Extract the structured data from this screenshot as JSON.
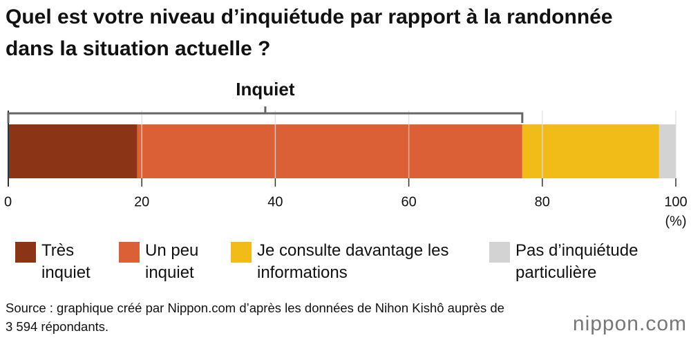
{
  "chart_data": {
    "type": "stacked-bar",
    "title": "Quel est votre niveau d’inquiétude par rapport à la randonnée dans la situation actuelle ?",
    "bracket_label": "Inquiet",
    "axis_unit": "(%)",
    "xlim": [
      0,
      100
    ],
    "xticks": [
      0,
      20,
      40,
      60,
      80,
      100
    ],
    "grid": true,
    "series": [
      {
        "name": "Très inquiet",
        "color": "#8c3516",
        "values": [
          19.3
        ]
      },
      {
        "name": "Un peu inquiet",
        "color": "#dc6035",
        "values": [
          57.7
        ]
      },
      {
        "name": "Je consulte davantage les informations",
        "color": "#f2bc18",
        "values": [
          20.5
        ]
      },
      {
        "name": "Pas d’inquiétude particulière",
        "color": "#d3d3d3",
        "values": [
          2.5
        ]
      }
    ],
    "source": "Source : graphique créé par Nippon.com d’après les données de Nihon Kishô auprès de 3 594 répondants.",
    "logo": "nippon.com"
  }
}
